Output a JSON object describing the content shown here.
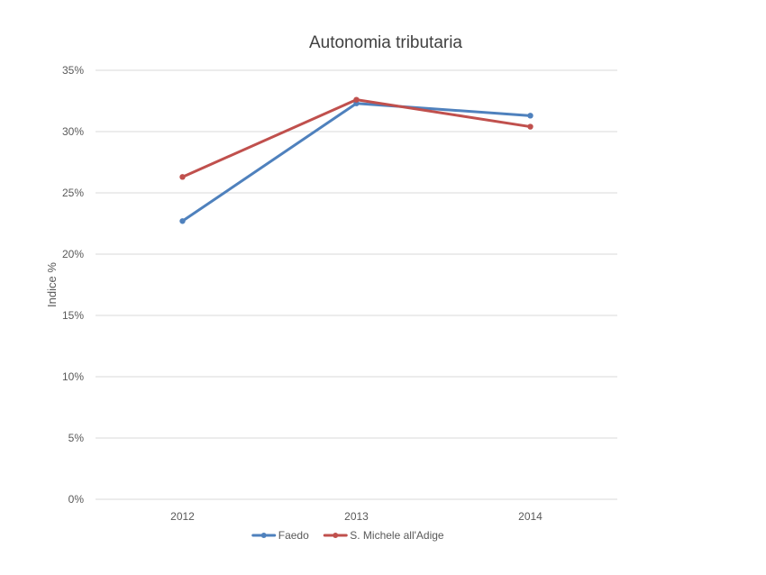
{
  "chart_data": {
    "type": "line",
    "title": "Autonomia tributaria",
    "xlabel": "",
    "ylabel": "Indice %",
    "categories": [
      "2012",
      "2013",
      "2014"
    ],
    "ylim": [
      0,
      35
    ],
    "yticks": [
      0,
      5,
      10,
      15,
      20,
      25,
      30,
      35
    ],
    "ytick_suffix": "%",
    "grid": true,
    "legend_position": "bottom",
    "series": [
      {
        "name": "Faedo",
        "color": "#4f81bd",
        "values": [
          22.7,
          32.3,
          31.3
        ]
      },
      {
        "name": "S. Michele all'Adige",
        "color": "#c0504d",
        "values": [
          26.3,
          32.6,
          30.4
        ]
      }
    ]
  }
}
